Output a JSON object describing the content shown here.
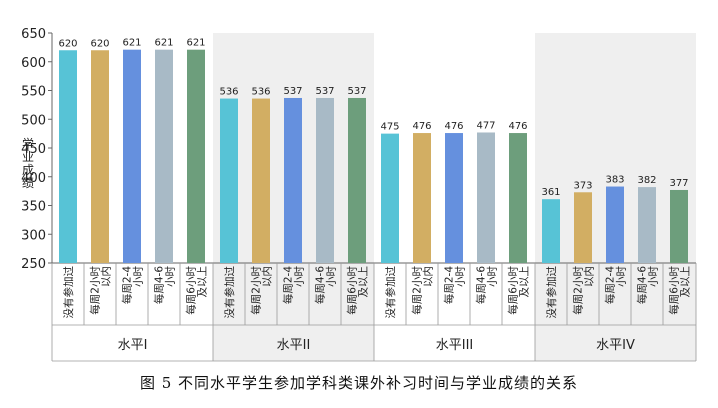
{
  "caption": "图 5  不同水平学生参加学科类课外补习时间与学业成绩的关系",
  "chart_data": {
    "type": "bar",
    "ylabel": "学业成绩",
    "ylim": [
      250,
      650
    ],
    "yticks": [
      250,
      300,
      350,
      400,
      450,
      500,
      550,
      600,
      650
    ],
    "categories": [
      "没有参加过",
      "每周2小时以内",
      "每周2-4小时",
      "每周4-6小时",
      "每周6小时及以上"
    ],
    "category_label_lines": [
      [
        "没有参加过"
      ],
      [
        "每周2小时",
        "以内"
      ],
      [
        "每周2-4",
        "小时"
      ],
      [
        "每周4-6",
        "小时"
      ],
      [
        "每周6小时",
        "及以上"
      ]
    ],
    "bar_colors": [
      "#57c3d6",
      "#d2ae63",
      "#6590de",
      "#a8bac6",
      "#6d9e7c"
    ],
    "groups": [
      {
        "label": "水平I",
        "values": [
          620,
          620,
          621,
          621,
          621
        ],
        "shaded": false
      },
      {
        "label": "水平II",
        "values": [
          536,
          536,
          537,
          537,
          537
        ],
        "shaded": true
      },
      {
        "label": "水平III",
        "values": [
          475,
          476,
          476,
          477,
          476
        ],
        "shaded": false
      },
      {
        "label": "水平IV",
        "values": [
          361,
          373,
          383,
          382,
          377
        ],
        "shaded": true
      }
    ]
  }
}
